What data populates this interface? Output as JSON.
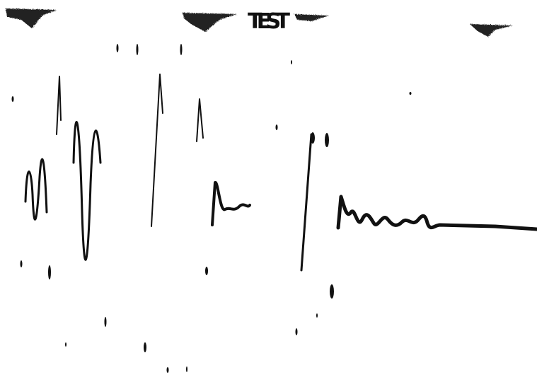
{
  "title": "TEST"
}
